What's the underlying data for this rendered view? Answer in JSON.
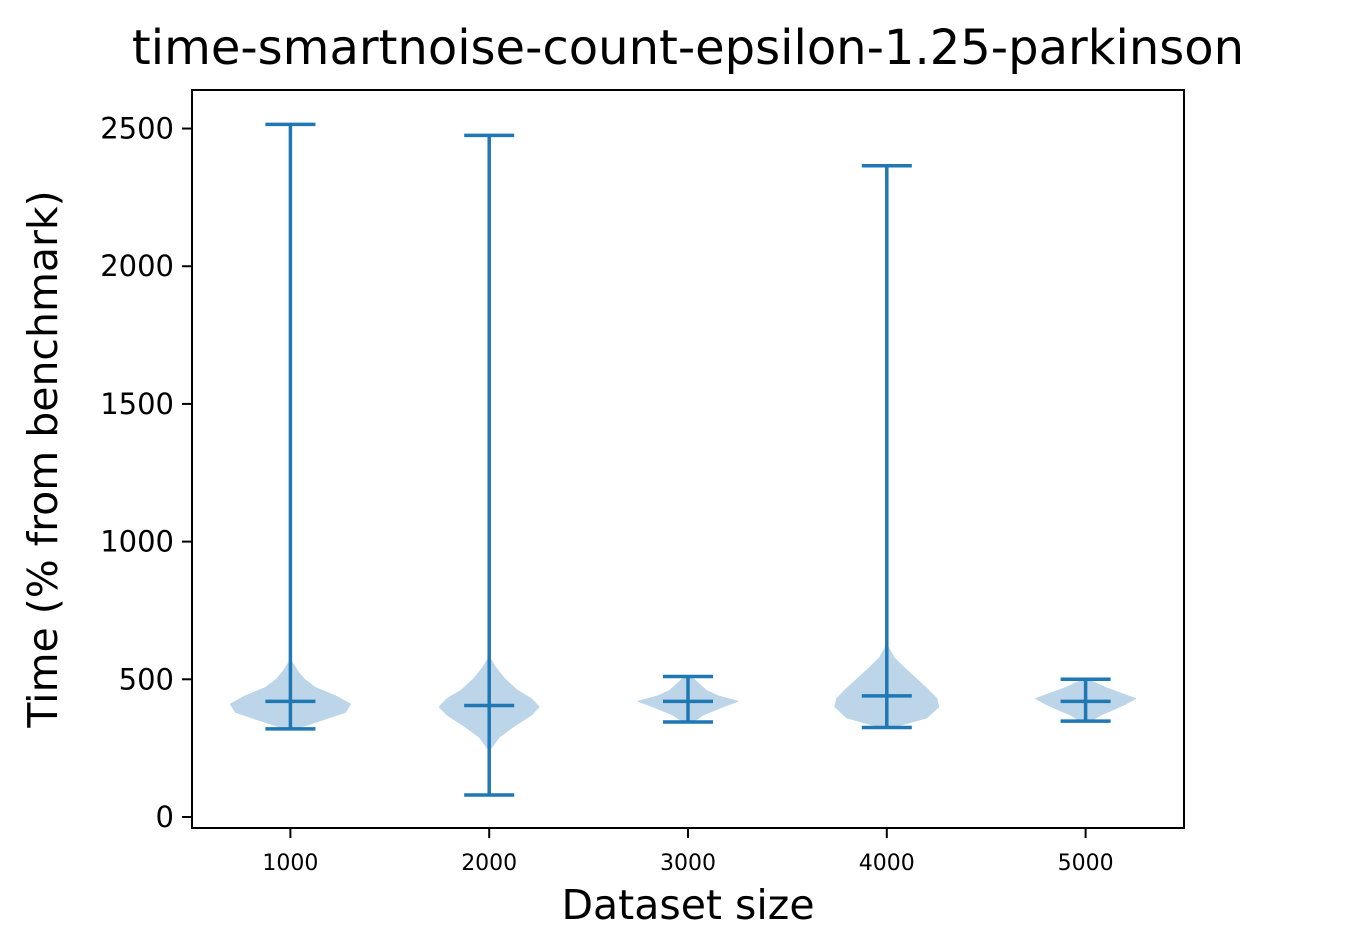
{
  "chart_data": {
    "type": "violin",
    "title": "time-smartnoise-count-epsilon-1.25-parkinson",
    "xlabel": "Dataset size",
    "ylabel": "Time (% from benchmark)",
    "categories": [
      "1000",
      "2000",
      "3000",
      "4000",
      "5000"
    ],
    "yticks": [
      "0",
      "500",
      "1000",
      "1500",
      "2000",
      "2500"
    ],
    "ylim": [
      -40,
      2640
    ],
    "grid": false,
    "colors": {
      "body": "#bcd5e9",
      "lines": "#1f77b4"
    },
    "series": [
      {
        "category": "1000",
        "min": 320,
        "max": 2515,
        "mean": 420,
        "profile": [
          [
            320,
            0.05
          ],
          [
            350,
            0.3
          ],
          [
            380,
            0.55
          ],
          [
            410,
            0.6
          ],
          [
            440,
            0.45
          ],
          [
            470,
            0.25
          ],
          [
            500,
            0.14
          ],
          [
            530,
            0.07
          ],
          [
            560,
            0.02
          ]
        ]
      },
      {
        "category": "2000",
        "min": 80,
        "max": 2475,
        "mean": 405,
        "profile": [
          [
            250,
            0.02
          ],
          [
            290,
            0.1
          ],
          [
            330,
            0.25
          ],
          [
            370,
            0.42
          ],
          [
            400,
            0.5
          ],
          [
            430,
            0.42
          ],
          [
            460,
            0.28
          ],
          [
            500,
            0.16
          ],
          [
            540,
            0.07
          ],
          [
            570,
            0.02
          ]
        ]
      },
      {
        "category": "3000",
        "min": 345,
        "max": 510,
        "mean": 420,
        "profile": [
          [
            345,
            0.05
          ],
          [
            370,
            0.15
          ],
          [
            400,
            0.35
          ],
          [
            420,
            0.5
          ],
          [
            440,
            0.3
          ],
          [
            460,
            0.18
          ],
          [
            480,
            0.12
          ],
          [
            500,
            0.06
          ],
          [
            510,
            0.02
          ]
        ]
      },
      {
        "category": "4000",
        "min": 325,
        "max": 2365,
        "mean": 440,
        "profile": [
          [
            325,
            0.05
          ],
          [
            360,
            0.4
          ],
          [
            400,
            0.52
          ],
          [
            430,
            0.5
          ],
          [
            460,
            0.42
          ],
          [
            500,
            0.3
          ],
          [
            540,
            0.18
          ],
          [
            580,
            0.07
          ],
          [
            620,
            0.01
          ]
        ]
      },
      {
        "category": "5000",
        "min": 348,
        "max": 500,
        "mean": 420,
        "profile": [
          [
            348,
            0.05
          ],
          [
            370,
            0.15
          ],
          [
            390,
            0.28
          ],
          [
            410,
            0.4
          ],
          [
            430,
            0.5
          ],
          [
            450,
            0.35
          ],
          [
            470,
            0.2
          ],
          [
            490,
            0.08
          ],
          [
            500,
            0.02
          ]
        ]
      }
    ]
  }
}
